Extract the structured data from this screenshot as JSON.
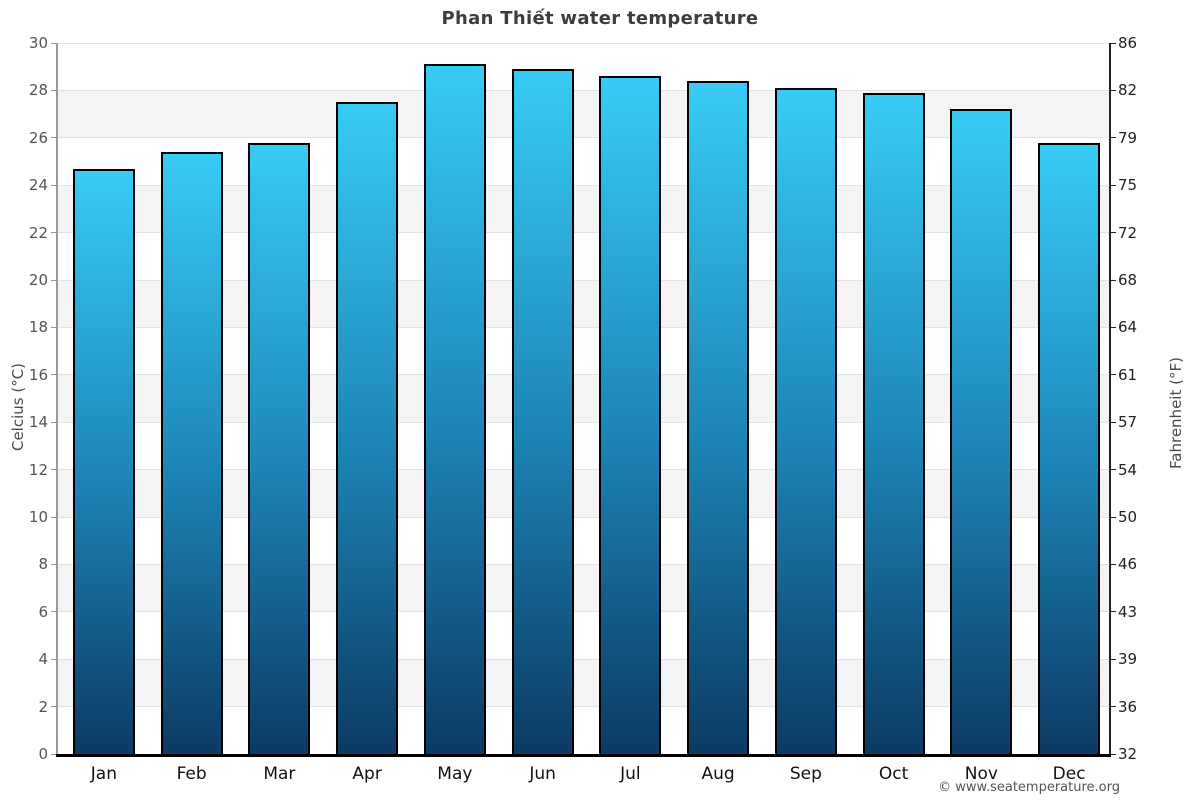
{
  "chart": {
    "title": "Phan Thiết water temperature",
    "y_left_label": "Celcius (°C)",
    "y_right_label": "Fahrenheit (°F)",
    "copyright": "© www.seatemperature.org"
  },
  "chart_data": {
    "type": "bar",
    "title": "Phan Thiết water temperature",
    "categories": [
      "Jan",
      "Feb",
      "Mar",
      "Apr",
      "May",
      "Jun",
      "Jul",
      "Aug",
      "Sep",
      "Oct",
      "Nov",
      "Dec"
    ],
    "values": [
      24.7,
      25.4,
      25.8,
      27.5,
      29.1,
      28.9,
      28.6,
      28.4,
      28.1,
      27.9,
      27.2,
      25.8
    ],
    "series_name": "Water temperature (°C)",
    "xlabel": "",
    "ylabel": "Celcius (°C)",
    "y2label": "Fahrenheit (°F)",
    "ylim": [
      0,
      30
    ],
    "y_ticks_celsius": [
      30,
      28,
      26,
      24,
      22,
      20,
      18,
      16,
      14,
      12,
      10,
      8,
      6,
      4,
      2,
      0
    ],
    "y_ticks_fahrenheit": [
      86,
      82,
      79,
      75,
      72,
      68,
      64,
      61,
      57,
      54,
      50,
      46,
      43,
      39,
      36,
      32
    ],
    "grid": "horizontal, alternating shaded bands every 2°C",
    "legend": "none",
    "annotation": "© www.seatemperature.org"
  },
  "colors": {
    "bar_top": "#38cbf6",
    "bar_mid": "#1d86b8",
    "bar_bottom": "#0c3a63",
    "bar_border": "#000000",
    "band_gray": "#f4f4f4",
    "band_white": "#ffffff",
    "grid_line": "#e2e2e2",
    "axis_left": "#999999",
    "axis_right": "#222222",
    "axis_bottom": "#000000",
    "tick_text_left": "#555555",
    "tick_text_right": "#222222",
    "month_text": "#111111",
    "title_text": "#3d3d3d",
    "axis_label_text": "#4a4a4a",
    "copyright_text": "#555555"
  }
}
